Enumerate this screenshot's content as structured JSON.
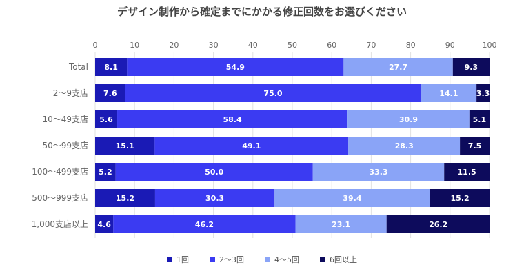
{
  "chart_data": {
    "type": "bar",
    "orientation": "horizontal",
    "stacked": true,
    "title": "デザイン制作から確定までにかかる修正回数をお選びください",
    "xlim": [
      0,
      100
    ],
    "xticks": [
      "0",
      "10",
      "20",
      "30",
      "40",
      "50",
      "60",
      "70",
      "80",
      "90",
      "100"
    ],
    "categories": [
      "Total",
      "2～9支店",
      "10～49支店",
      "50～99支店",
      "100～499支店",
      "500～999支店",
      "1,000支店以上"
    ],
    "series": [
      {
        "name": "1回",
        "color": "#1a1ab5",
        "values": [
          8.1,
          7.6,
          5.6,
          15.1,
          5.2,
          15.2,
          4.6
        ],
        "labels": [
          "8.1",
          "7.6",
          "5.6",
          "15.1",
          "5.2",
          "15.2",
          "4.6"
        ]
      },
      {
        "name": "2～3回",
        "color": "#3b3bf2",
        "values": [
          54.9,
          75.0,
          58.4,
          49.1,
          50.0,
          30.3,
          46.2
        ],
        "labels": [
          "54.9",
          "75.0",
          "58.4",
          "49.1",
          "50.0",
          "30.3",
          "46.2"
        ]
      },
      {
        "name": "4～5回",
        "color": "#8aa4f7",
        "values": [
          27.7,
          14.1,
          30.9,
          28.3,
          33.3,
          39.4,
          23.1
        ],
        "labels": [
          "27.7",
          "14.1",
          "30.9",
          "28.3",
          "33.3",
          "39.4",
          "23.1"
        ]
      },
      {
        "name": "6回以上",
        "color": "#0d0b5c",
        "values": [
          9.3,
          3.3,
          5.1,
          7.5,
          11.5,
          15.2,
          26.2
        ],
        "labels": [
          "9.3",
          "3.3",
          "5.1",
          "7.5",
          "11.5",
          "15.2",
          "26.2"
        ]
      }
    ],
    "legend_position": "bottom",
    "grid": true
  }
}
